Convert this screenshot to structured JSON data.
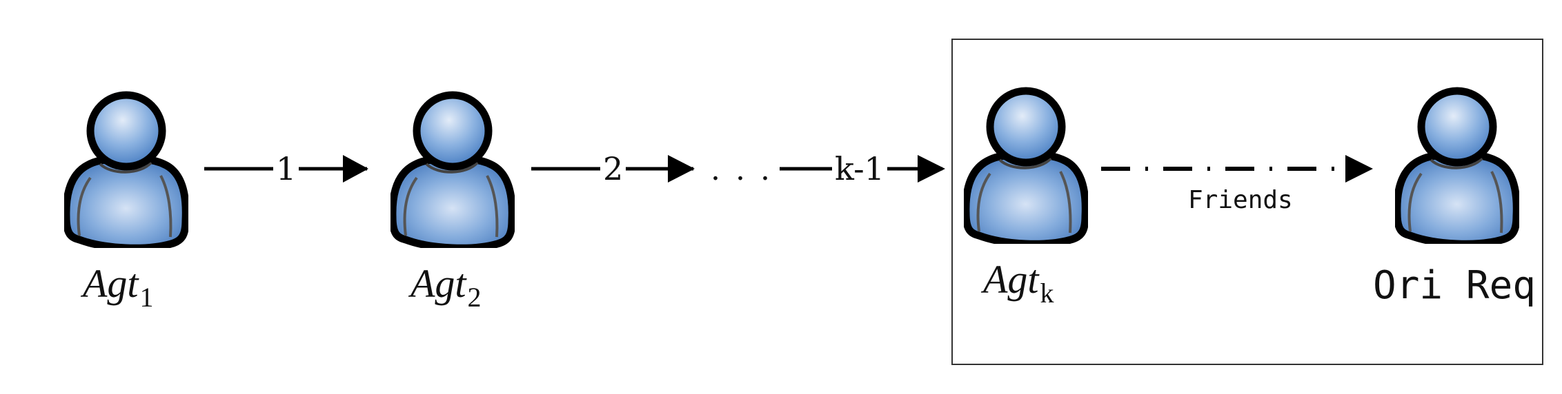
{
  "agents": [
    {
      "base": "Agt",
      "sub": "1"
    },
    {
      "base": "Agt",
      "sub": "2"
    },
    {
      "base": "Agt",
      "sub": "k"
    }
  ],
  "edges": [
    "1",
    "2",
    "k-1"
  ],
  "ellipsis": "...",
  "friends_label": "Friends",
  "target_label": "Ori Req",
  "colors": {
    "person_fill": "#5b8fd0",
    "person_highlight": "#dfe9f7",
    "outline": "#000000"
  },
  "icons": [
    "person-icon",
    "arrow-icon"
  ]
}
